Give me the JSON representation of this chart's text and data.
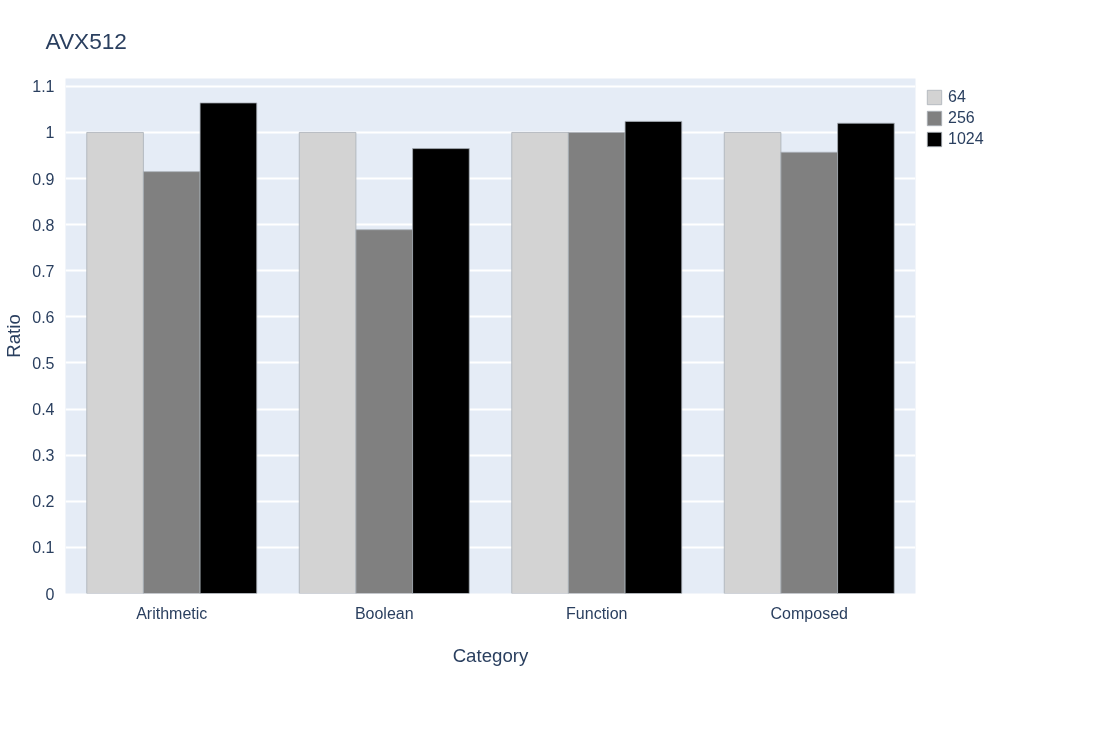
{
  "chart_data": {
    "type": "bar",
    "title": "AVX512",
    "xlabel": "Category",
    "ylabel": "Ratio",
    "categories": [
      "Arithmetic",
      "Boolean",
      "Function",
      "Composed"
    ],
    "series": [
      {
        "name": "64",
        "color": "#d3d3d3",
        "values": [
          1,
          1,
          1,
          1
        ]
      },
      {
        "name": "256",
        "color": "#808080",
        "values": [
          0.915,
          0.789,
          1.0,
          0.957
        ]
      },
      {
        "name": "1024",
        "color": "#000000",
        "values": [
          1.064,
          0.965,
          1.024,
          1.02
        ]
      }
    ],
    "ylim": [
      0,
      1.117
    ],
    "yticks": [
      0,
      0.1,
      0.2,
      0.3,
      0.4,
      0.5,
      0.6,
      0.7,
      0.8,
      0.9,
      1,
      1.1
    ],
    "grid": "y",
    "legend": "top right"
  }
}
